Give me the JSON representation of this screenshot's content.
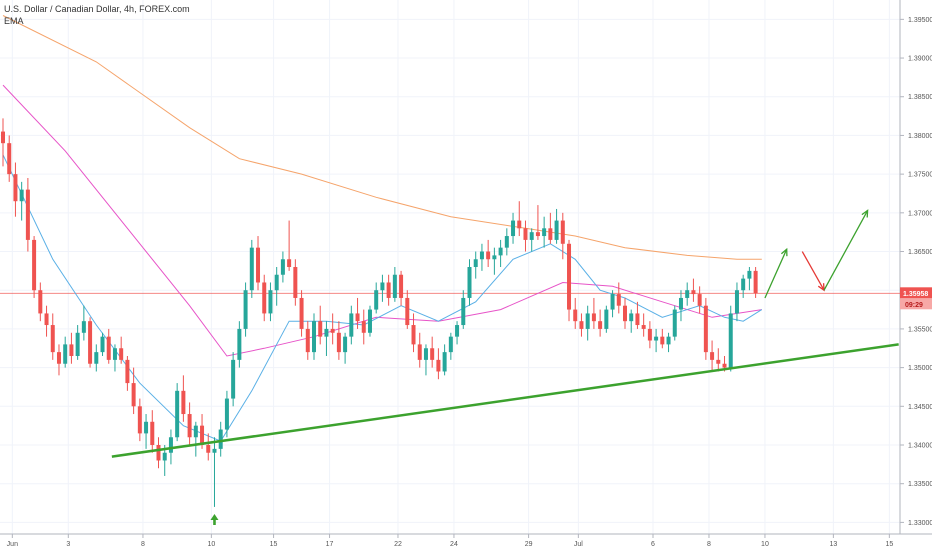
{
  "header": {
    "title": "U.S. Dollar / Canadian Dollar, 4h, FOREX.com",
    "indicator": "EMA"
  },
  "colors": {
    "up": "#26a69a",
    "down": "#ef5350",
    "ema_fast": "#5ab0e6",
    "ema_mid": "#e754c8",
    "ema_slow": "#f5a46b",
    "trendline": "#3ca22e",
    "price_line": "#ef5350"
  },
  "price_badge": {
    "price": "1.35958",
    "countdown": "09:29"
  },
  "chart_data": {
    "type": "candlestick",
    "ylim": [
      1.3285,
      1.3975
    ],
    "y_ticks": [
      "1.39500",
      "1.39000",
      "1.38500",
      "1.38000",
      "1.37500",
      "1.37000",
      "1.36500",
      "1.36000",
      "1.35500",
      "1.35000",
      "1.34500",
      "1.34000",
      "1.33500",
      "1.33000"
    ],
    "x_ticks": [
      "Jun",
      "3",
      "8",
      "10",
      "15",
      "17",
      "22",
      "24",
      "29",
      "Jul",
      "6",
      "8",
      "10",
      "13",
      "15"
    ],
    "candles": [
      [
        1.3805,
        1.3822,
        1.376,
        1.379
      ],
      [
        1.379,
        1.38,
        1.374,
        1.375
      ],
      [
        1.375,
        1.3765,
        1.3695,
        1.3715
      ],
      [
        1.3715,
        1.374,
        1.369,
        1.373
      ],
      [
        1.373,
        1.3745,
        1.365,
        1.3665
      ],
      [
        1.3665,
        1.367,
        1.359,
        1.36
      ],
      [
        1.36,
        1.361,
        1.356,
        1.357
      ],
      [
        1.357,
        1.358,
        1.354,
        1.3555
      ],
      [
        1.3555,
        1.357,
        1.351,
        1.352
      ],
      [
        1.352,
        1.353,
        1.349,
        1.3505
      ],
      [
        1.3505,
        1.354,
        1.35,
        1.353
      ],
      [
        1.353,
        1.3545,
        1.3505,
        1.3515
      ],
      [
        1.3515,
        1.3555,
        1.351,
        1.3545
      ],
      [
        1.3545,
        1.358,
        1.3535,
        1.356
      ],
      [
        1.356,
        1.3565,
        1.35,
        1.3505
      ],
      [
        1.3505,
        1.353,
        1.3495,
        1.352
      ],
      [
        1.352,
        1.3545,
        1.3515,
        1.354
      ],
      [
        1.354,
        1.355,
        1.3505,
        1.351
      ],
      [
        1.351,
        1.353,
        1.3495,
        1.3525
      ],
      [
        1.3525,
        1.354,
        1.3505,
        1.351
      ],
      [
        1.351,
        1.3515,
        1.347,
        1.348
      ],
      [
        1.348,
        1.35,
        1.344,
        1.345
      ],
      [
        1.345,
        1.346,
        1.3405,
        1.3415
      ],
      [
        1.3415,
        1.344,
        1.3395,
        1.343
      ],
      [
        1.343,
        1.3445,
        1.339,
        1.34
      ],
      [
        1.34,
        1.341,
        1.337,
        1.338
      ],
      [
        1.338,
        1.34,
        1.336,
        1.339
      ],
      [
        1.339,
        1.342,
        1.3375,
        1.341
      ],
      [
        1.341,
        1.348,
        1.3405,
        1.347
      ],
      [
        1.347,
        1.349,
        1.343,
        1.344
      ],
      [
        1.344,
        1.3455,
        1.34,
        1.341
      ],
      [
        1.341,
        1.343,
        1.3385,
        1.3425
      ],
      [
        1.3425,
        1.344,
        1.3395,
        1.34
      ],
      [
        1.34,
        1.3415,
        1.338,
        1.339
      ],
      [
        1.339,
        1.341,
        1.332,
        1.3395
      ],
      [
        1.3395,
        1.343,
        1.3385,
        1.342
      ],
      [
        1.342,
        1.347,
        1.341,
        1.346
      ],
      [
        1.346,
        1.352,
        1.345,
        1.351
      ],
      [
        1.351,
        1.356,
        1.35,
        1.355
      ],
      [
        1.355,
        1.361,
        1.354,
        1.36
      ],
      [
        1.36,
        1.3665,
        1.359,
        1.3655
      ],
      [
        1.3655,
        1.367,
        1.36,
        1.361
      ],
      [
        1.361,
        1.362,
        1.356,
        1.357
      ],
      [
        1.357,
        1.361,
        1.356,
        1.36
      ],
      [
        1.36,
        1.363,
        1.358,
        1.362
      ],
      [
        1.362,
        1.365,
        1.361,
        1.364
      ],
      [
        1.364,
        1.369,
        1.3625,
        1.363
      ],
      [
        1.363,
        1.364,
        1.358,
        1.359
      ],
      [
        1.359,
        1.36,
        1.354,
        1.355
      ],
      [
        1.355,
        1.356,
        1.351,
        1.352
      ],
      [
        1.352,
        1.357,
        1.351,
        1.356
      ],
      [
        1.356,
        1.358,
        1.353,
        1.354
      ],
      [
        1.354,
        1.356,
        1.3515,
        1.355
      ],
      [
        1.355,
        1.357,
        1.353,
        1.3545
      ],
      [
        1.3545,
        1.356,
        1.351,
        1.352
      ],
      [
        1.352,
        1.3545,
        1.3505,
        1.354
      ],
      [
        1.354,
        1.358,
        1.353,
        1.357
      ],
      [
        1.357,
        1.359,
        1.355,
        1.356
      ],
      [
        1.356,
        1.3575,
        1.353,
        1.3545
      ],
      [
        1.3545,
        1.358,
        1.354,
        1.3575
      ],
      [
        1.3575,
        1.361,
        1.357,
        1.36
      ],
      [
        1.36,
        1.362,
        1.3585,
        1.361
      ],
      [
        1.361,
        1.362,
        1.358,
        1.359
      ],
      [
        1.359,
        1.363,
        1.3585,
        1.362
      ],
      [
        1.362,
        1.3625,
        1.358,
        1.359
      ],
      [
        1.359,
        1.36,
        1.355,
        1.3555
      ],
      [
        1.3555,
        1.357,
        1.352,
        1.353
      ],
      [
        1.353,
        1.3545,
        1.35,
        1.351
      ],
      [
        1.351,
        1.353,
        1.349,
        1.3525
      ],
      [
        1.3525,
        1.354,
        1.35,
        1.351
      ],
      [
        1.351,
        1.3525,
        1.3485,
        1.3495
      ],
      [
        1.3495,
        1.353,
        1.349,
        1.352
      ],
      [
        1.352,
        1.3545,
        1.351,
        1.354
      ],
      [
        1.354,
        1.356,
        1.353,
        1.3555
      ],
      [
        1.3555,
        1.36,
        1.355,
        1.359
      ],
      [
        1.359,
        1.364,
        1.358,
        1.363
      ],
      [
        1.363,
        1.365,
        1.3615,
        1.364
      ],
      [
        1.364,
        1.366,
        1.3625,
        1.365
      ],
      [
        1.365,
        1.3665,
        1.363,
        1.364
      ],
      [
        1.364,
        1.3655,
        1.362,
        1.3645
      ],
      [
        1.3645,
        1.3665,
        1.363,
        1.3655
      ],
      [
        1.3655,
        1.368,
        1.3645,
        1.367
      ],
      [
        1.367,
        1.37,
        1.366,
        1.369
      ],
      [
        1.369,
        1.3715,
        1.367,
        1.368
      ],
      [
        1.368,
        1.369,
        1.365,
        1.3665
      ],
      [
        1.3665,
        1.368,
        1.365,
        1.3675
      ],
      [
        1.3675,
        1.371,
        1.3665,
        1.367
      ],
      [
        1.367,
        1.3695,
        1.3655,
        1.368
      ],
      [
        1.368,
        1.37,
        1.366,
        1.3665
      ],
      [
        1.3665,
        1.3705,
        1.366,
        1.369
      ],
      [
        1.369,
        1.37,
        1.364,
        1.366
      ],
      [
        1.366,
        1.3665,
        1.356,
        1.3575
      ],
      [
        1.3575,
        1.359,
        1.355,
        1.356
      ],
      [
        1.356,
        1.357,
        1.354,
        1.355
      ],
      [
        1.355,
        1.358,
        1.3535,
        1.357
      ],
      [
        1.357,
        1.359,
        1.355,
        1.356
      ],
      [
        1.356,
        1.3575,
        1.354,
        1.355
      ],
      [
        1.355,
        1.358,
        1.3545,
        1.3575
      ],
      [
        1.3575,
        1.36,
        1.3565,
        1.3595
      ],
      [
        1.3595,
        1.361,
        1.357,
        1.358
      ],
      [
        1.358,
        1.359,
        1.355,
        1.356
      ],
      [
        1.356,
        1.3575,
        1.3545,
        1.357
      ],
      [
        1.357,
        1.3585,
        1.355,
        1.3555
      ],
      [
        1.3555,
        1.357,
        1.354,
        1.355
      ],
      [
        1.355,
        1.356,
        1.3525,
        1.3535
      ],
      [
        1.3535,
        1.355,
        1.352,
        1.354
      ],
      [
        1.354,
        1.355,
        1.3525,
        1.353
      ],
      [
        1.353,
        1.3545,
        1.352,
        1.354
      ],
      [
        1.354,
        1.358,
        1.3535,
        1.3575
      ],
      [
        1.3575,
        1.36,
        1.356,
        1.359
      ],
      [
        1.359,
        1.361,
        1.358,
        1.36
      ],
      [
        1.36,
        1.3615,
        1.3585,
        1.3595
      ],
      [
        1.3595,
        1.3605,
        1.357,
        1.358
      ],
      [
        1.358,
        1.359,
        1.351,
        1.352
      ],
      [
        1.352,
        1.3535,
        1.3495,
        1.351
      ],
      [
        1.351,
        1.3525,
        1.3495,
        1.3505
      ],
      [
        1.3505,
        1.3515,
        1.3495,
        1.35
      ],
      [
        1.35,
        1.358,
        1.3495,
        1.357
      ],
      [
        1.357,
        1.361,
        1.356,
        1.36
      ],
      [
        1.36,
        1.362,
        1.359,
        1.3615
      ],
      [
        1.3615,
        1.363,
        1.36,
        1.3625
      ],
      [
        1.3625,
        1.363,
        1.359,
        1.3596
      ]
    ],
    "ema_fast": [
      [
        0,
        1.3775
      ],
      [
        8,
        1.364
      ],
      [
        15,
        1.3555
      ],
      [
        22,
        1.348
      ],
      [
        29,
        1.3425
      ],
      [
        35,
        1.3405
      ],
      [
        40,
        1.347
      ],
      [
        46,
        1.356
      ],
      [
        52,
        1.356
      ],
      [
        58,
        1.3555
      ],
      [
        64,
        1.358
      ],
      [
        70,
        1.356
      ],
      [
        76,
        1.3585
      ],
      [
        82,
        1.364
      ],
      [
        88,
        1.366
      ],
      [
        92,
        1.364
      ],
      [
        96,
        1.36
      ],
      [
        100,
        1.359
      ],
      [
        106,
        1.3565
      ],
      [
        112,
        1.358
      ],
      [
        116,
        1.3565
      ],
      [
        119,
        1.356
      ],
      [
        122,
        1.3575
      ]
    ],
    "ema_mid": [
      [
        0,
        1.3865
      ],
      [
        10,
        1.378
      ],
      [
        20,
        1.368
      ],
      [
        30,
        1.358
      ],
      [
        36,
        1.3515
      ],
      [
        42,
        1.3525
      ],
      [
        50,
        1.354
      ],
      [
        60,
        1.3565
      ],
      [
        70,
        1.356
      ],
      [
        80,
        1.3575
      ],
      [
        90,
        1.361
      ],
      [
        98,
        1.3605
      ],
      [
        106,
        1.3585
      ],
      [
        114,
        1.3565
      ],
      [
        122,
        1.3575
      ]
    ],
    "ema_slow": [
      [
        0,
        1.3955
      ],
      [
        15,
        1.3895
      ],
      [
        30,
        1.381
      ],
      [
        38,
        1.377
      ],
      [
        48,
        1.375
      ],
      [
        60,
        1.372
      ],
      [
        72,
        1.3695
      ],
      [
        84,
        1.368
      ],
      [
        92,
        1.367
      ],
      [
        100,
        1.3655
      ],
      [
        110,
        1.3645
      ],
      [
        118,
        1.364
      ],
      [
        122,
        1.364
      ]
    ],
    "trendline": [
      [
        17.5,
        1.3385
      ],
      [
        144,
        1.353
      ]
    ],
    "price_line": 1.3596,
    "forecast_arrows": [
      {
        "color": "green",
        "points": [
          [
            122.5,
            1.359
          ],
          [
            126,
            1.3653
          ]
        ]
      },
      {
        "color": "red",
        "points": [
          [
            128.5,
            1.365
          ],
          [
            132,
            1.36
          ]
        ]
      },
      {
        "color": "green",
        "points": [
          [
            132,
            1.36
          ],
          [
            139,
            1.3703
          ]
        ]
      }
    ],
    "low_marker": {
      "index": 34,
      "price": 1.3305
    }
  }
}
